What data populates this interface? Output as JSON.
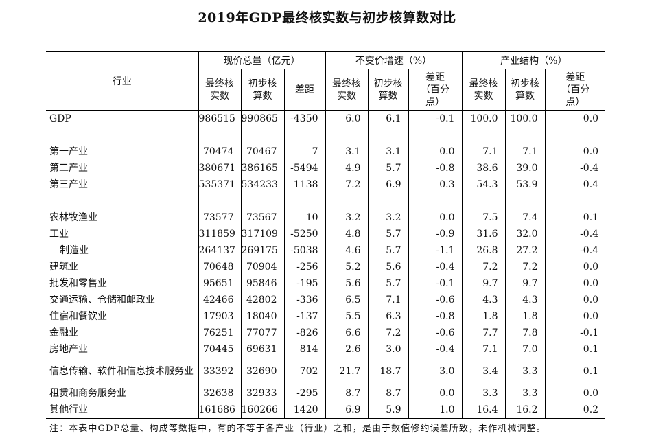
{
  "title": "2019年GDP最终核实数与初步核算数对比",
  "header": {
    "industry": "行业",
    "groups": [
      "现价总量（亿元）",
      "不变价增速（%）",
      "产业结构（%）"
    ],
    "sub_final": "最终核实数",
    "sub_initial": "初步核算数",
    "sub_diff": "差距",
    "sub_diff_pct": "差距（百分点）"
  },
  "rows": [
    {
      "name": "GDP",
      "vals": [
        "986515",
        "990865",
        "-4350",
        "6.0",
        "6.1",
        "-0.1",
        "100.0",
        "100.0",
        "0.0"
      ]
    },
    {
      "spacer": true
    },
    {
      "name": "第一产业",
      "vals": [
        "70474",
        "70467",
        "7",
        "3.1",
        "3.1",
        "0.0",
        "7.1",
        "7.1",
        "0.0"
      ]
    },
    {
      "name": "第二产业",
      "vals": [
        "380671",
        "386165",
        "-5494",
        "4.9",
        "5.7",
        "-0.8",
        "38.6",
        "39.0",
        "-0.4"
      ]
    },
    {
      "name": "第三产业",
      "vals": [
        "535371",
        "534233",
        "1138",
        "7.2",
        "6.9",
        "0.3",
        "54.3",
        "53.9",
        "0.4"
      ]
    },
    {
      "spacer": true
    },
    {
      "name": "农林牧渔业",
      "vals": [
        "73577",
        "73567",
        "10",
        "3.2",
        "3.2",
        "0.0",
        "7.5",
        "7.4",
        "0.1"
      ]
    },
    {
      "name": "工业",
      "vals": [
        "311859",
        "317109",
        "-5250",
        "4.8",
        "5.7",
        "-0.9",
        "31.6",
        "32.0",
        "-0.4"
      ]
    },
    {
      "name": "制造业",
      "indent": true,
      "vals": [
        "264137",
        "269175",
        "-5038",
        "4.6",
        "5.7",
        "-1.1",
        "26.8",
        "27.2",
        "-0.4"
      ]
    },
    {
      "name": "建筑业",
      "vals": [
        "70648",
        "70904",
        "-256",
        "5.2",
        "5.6",
        "-0.4",
        "7.2",
        "7.2",
        "0.0"
      ]
    },
    {
      "name": "批发和零售业",
      "vals": [
        "95651",
        "95846",
        "-195",
        "5.6",
        "5.7",
        "-0.1",
        "9.7",
        "9.7",
        "0.0"
      ]
    },
    {
      "name": "交通运输、仓储和邮政业",
      "vals": [
        "42466",
        "42802",
        "-336",
        "6.5",
        "7.1",
        "-0.6",
        "4.3",
        "4.3",
        "0.0"
      ]
    },
    {
      "name": "住宿和餐饮业",
      "vals": [
        "17903",
        "18040",
        "-137",
        "5.5",
        "6.3",
        "-0.8",
        "1.8",
        "1.8",
        "0.0"
      ]
    },
    {
      "name": "金融业",
      "vals": [
        "76251",
        "77077",
        "-826",
        "6.6",
        "7.2",
        "-0.6",
        "7.7",
        "7.8",
        "-0.1"
      ]
    },
    {
      "name": "房地产业",
      "vals": [
        "70445",
        "69631",
        "814",
        "2.6",
        "3.0",
        "-0.4",
        "7.1",
        "7.0",
        "0.1"
      ]
    },
    {
      "name": "信息传输、软件和信息技术服务业",
      "tall": true,
      "vals": [
        "33392",
        "32690",
        "702",
        "21.7",
        "18.7",
        "3.0",
        "3.4",
        "3.3",
        "0.1"
      ]
    },
    {
      "name": "租赁和商务服务业",
      "vals": [
        "32638",
        "32933",
        "-295",
        "8.7",
        "8.7",
        "0.0",
        "3.3",
        "3.3",
        "0.0"
      ]
    },
    {
      "name": "其他行业",
      "vals": [
        "161686",
        "160266",
        "1420",
        "6.9",
        "5.9",
        "1.0",
        "16.4",
        "16.2",
        "0.2"
      ]
    }
  ],
  "note": "注：本表中GDP总量、构成等数据中，有的不等于各产业（行业）之和，是由于数值修约误差所致，未作机械调整。"
}
